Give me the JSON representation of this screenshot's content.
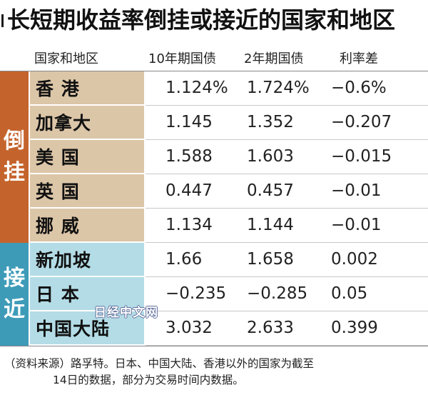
{
  "title": "长短期收益率倒挂或接近的国家和地区",
  "headers": {
    "country": "国家和地区",
    "ten_year": "10年期国债",
    "two_year": "2年期国债",
    "spread": "利率差"
  },
  "groups": {
    "inverted": {
      "label_chars": [
        "倒",
        "挂"
      ],
      "band_color": "#c4642c",
      "cell_color": "#dcc6a8",
      "rows": [
        {
          "country": "香 港",
          "ten_year": "1.124%",
          "two_year": "1.724%",
          "spread": "−0.6%"
        },
        {
          "country": "加拿大",
          "ten_year": "1.145",
          "two_year": "1.352",
          "spread": "−0.207"
        },
        {
          "country": "美 国",
          "ten_year": "1.588",
          "two_year": "1.603",
          "spread": "−0.015"
        },
        {
          "country": "英 国",
          "ten_year": "0.447",
          "two_year": "0.457",
          "spread": "−0.01"
        },
        {
          "country": "挪 威",
          "ten_year": "1.134",
          "two_year": "1.144",
          "spread": "−0.01"
        }
      ]
    },
    "near": {
      "label_chars": [
        "接",
        "近"
      ],
      "band_color": "#3d9bb8",
      "cell_color": "#b3dce6",
      "rows": [
        {
          "country": "新加坡",
          "ten_year": "1.66",
          "two_year": "1.658",
          "spread": "0.002"
        },
        {
          "country": "日 本",
          "ten_year": "−0.235",
          "two_year": "−0.285",
          "spread": "0.05"
        },
        {
          "country": "中国大陆",
          "ten_year": "3.032",
          "two_year": "2.633",
          "spread": "0.399"
        }
      ]
    }
  },
  "watermark": "日经中文网",
  "footnote": {
    "line1": "（资料来源）路孚特。日本、中国大陆、香港以外的国家为截至",
    "line2": "14日的数据，部分为交易时间内数据。"
  }
}
